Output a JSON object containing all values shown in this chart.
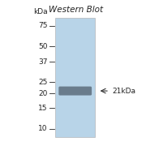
{
  "title": "Western Blot",
  "title_fontsize": 7.5,
  "kda_label": "kDa",
  "marker_labels": [
    "75",
    "50",
    "37",
    "25",
    "20",
    "15",
    "10"
  ],
  "marker_values": [
    75,
    50,
    37,
    25,
    20,
    15,
    10
  ],
  "band_kda": 21,
  "ymin": 8.5,
  "ymax": 88,
  "gel_bg_color": "#b8d4e8",
  "band_color": "#607080",
  "figure_bg": "#ffffff",
  "label_color": "#222222",
  "label_fontsize": 6.5,
  "arrow_color": "#333333",
  "band_label_fontsize": 6.5
}
